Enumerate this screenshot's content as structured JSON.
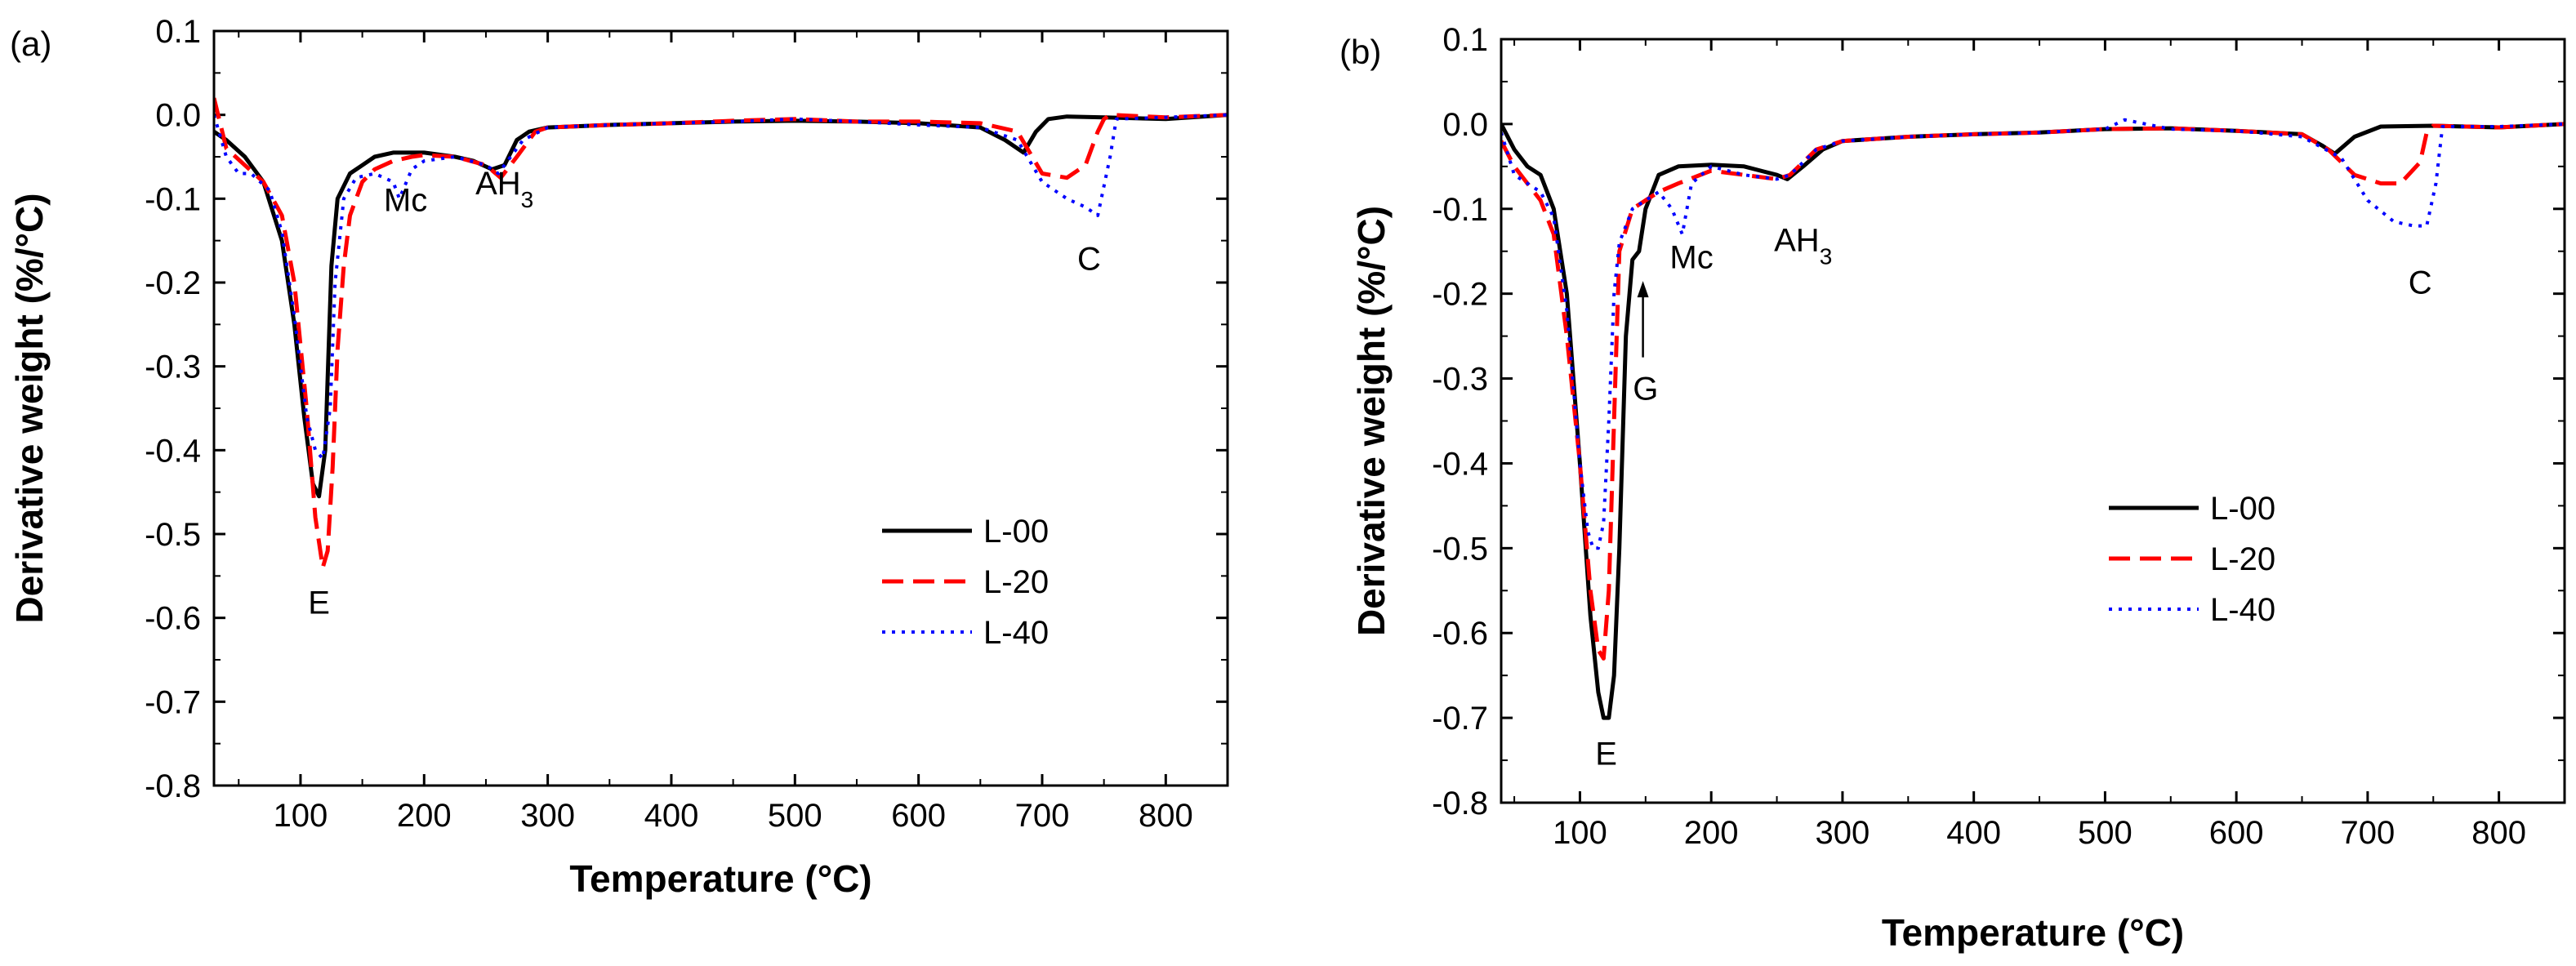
{
  "chart_data": [
    {
      "panel_label": "(a)",
      "type": "line",
      "xlabel": "Temperature (°C)",
      "ylabel": "Derivative weight (%/°C)",
      "xlim": [
        30,
        850
      ],
      "ylim": [
        -0.8,
        0.1
      ],
      "xticks": [
        100,
        200,
        300,
        400,
        500,
        600,
        700,
        800
      ],
      "yticks": [
        -0.8,
        -0.7,
        -0.6,
        -0.5,
        -0.4,
        -0.3,
        -0.2,
        -0.1,
        0.0,
        0.1
      ],
      "legend_position": "lower-right",
      "annotations": [
        {
          "text": "E",
          "x": 115,
          "y": -0.595
        },
        {
          "text": "Mc",
          "x": 185,
          "y": -0.115
        },
        {
          "text": "AH",
          "sub": "3",
          "x": 265,
          "y": -0.095
        },
        {
          "text": "C",
          "x": 738,
          "y": -0.185
        }
      ],
      "series": [
        {
          "name": "L-00",
          "style": "solid",
          "color": "#000000",
          "x": [
            30,
            40,
            55,
            70,
            85,
            95,
            103,
            110,
            115,
            120,
            125,
            130,
            140,
            150,
            160,
            175,
            200,
            225,
            240,
            255,
            265,
            275,
            285,
            300,
            350,
            400,
            450,
            500,
            550,
            600,
            650,
            670,
            685,
            695,
            705,
            720,
            750,
            800,
            850
          ],
          "y": [
            -0.02,
            -0.03,
            -0.05,
            -0.08,
            -0.15,
            -0.25,
            -0.36,
            -0.44,
            -0.455,
            -0.4,
            -0.18,
            -0.1,
            -0.07,
            -0.06,
            -0.05,
            -0.045,
            -0.045,
            -0.05,
            -0.055,
            -0.065,
            -0.06,
            -0.03,
            -0.02,
            -0.015,
            -0.012,
            -0.01,
            -0.008,
            -0.007,
            -0.008,
            -0.01,
            -0.015,
            -0.03,
            -0.045,
            -0.02,
            -0.005,
            -0.002,
            -0.003,
            -0.005,
            0.0
          ]
        },
        {
          "name": "L-20",
          "style": "dashed",
          "color": "#ff0000",
          "x": [
            30,
            40,
            55,
            70,
            85,
            95,
            105,
            112,
            118,
            122,
            126,
            130,
            135,
            140,
            150,
            160,
            175,
            190,
            200,
            225,
            250,
            262,
            275,
            290,
            300,
            350,
            400,
            450,
            500,
            550,
            600,
            650,
            680,
            700,
            720,
            735,
            745,
            750,
            755,
            800,
            850
          ],
          "y": [
            0.02,
            -0.04,
            -0.06,
            -0.08,
            -0.12,
            -0.2,
            -0.35,
            -0.48,
            -0.54,
            -0.52,
            -0.42,
            -0.28,
            -0.18,
            -0.12,
            -0.08,
            -0.065,
            -0.055,
            -0.05,
            -0.048,
            -0.05,
            -0.06,
            -0.075,
            -0.05,
            -0.02,
            -0.015,
            -0.012,
            -0.01,
            -0.007,
            -0.005,
            -0.008,
            -0.008,
            -0.01,
            -0.02,
            -0.07,
            -0.075,
            -0.06,
            -0.02,
            -0.005,
            0.0,
            -0.003,
            0.0
          ]
        },
        {
          "name": "L-40",
          "style": "dotted",
          "color": "#0000ff",
          "x": [
            30,
            40,
            50,
            60,
            75,
            85,
            95,
            105,
            112,
            118,
            124,
            128,
            135,
            145,
            160,
            175,
            180,
            190,
            200,
            225,
            250,
            260,
            280,
            300,
            350,
            400,
            450,
            500,
            550,
            600,
            650,
            680,
            700,
            720,
            735,
            745,
            755,
            760,
            800,
            850
          ],
          "y": [
            0.0,
            -0.05,
            -0.07,
            -0.07,
            -0.09,
            -0.14,
            -0.24,
            -0.36,
            -0.4,
            -0.41,
            -0.35,
            -0.2,
            -0.1,
            -0.075,
            -0.07,
            -0.08,
            -0.1,
            -0.065,
            -0.055,
            -0.05,
            -0.06,
            -0.07,
            -0.03,
            -0.015,
            -0.012,
            -0.01,
            -0.008,
            -0.005,
            -0.008,
            -0.012,
            -0.015,
            -0.03,
            -0.08,
            -0.1,
            -0.11,
            -0.12,
            -0.05,
            -0.005,
            -0.003,
            0.0
          ]
        }
      ]
    },
    {
      "panel_label": "(b)",
      "type": "line",
      "xlabel": "Temperature (°C)",
      "ylabel": "Derivative weight (%/°C)",
      "xlim": [
        40,
        850
      ],
      "ylim": [
        -0.8,
        0.1
      ],
      "xticks": [
        100,
        200,
        300,
        400,
        500,
        600,
        700,
        800
      ],
      "yticks": [
        -0.8,
        -0.7,
        -0.6,
        -0.5,
        -0.4,
        -0.3,
        -0.2,
        -0.1,
        0.0,
        0.1
      ],
      "legend_position": "lower-right",
      "annotations": [
        {
          "text": "Mc",
          "x": 185,
          "y": -0.17
        },
        {
          "text": "AH",
          "sub": "3",
          "x": 270,
          "y": -0.15
        },
        {
          "text": "G",
          "x": 150,
          "y": -0.325
        },
        {
          "text": "E",
          "x": 120,
          "y": -0.755
        },
        {
          "text": "C",
          "x": 740,
          "y": -0.2
        }
      ],
      "arrow": {
        "x": 148,
        "y_from": -0.275,
        "y_to": -0.185
      },
      "series": [
        {
          "name": "L-00",
          "style": "solid",
          "color": "#000000",
          "x": [
            40,
            50,
            60,
            70,
            80,
            90,
            100,
            108,
            114,
            118,
            122,
            126,
            130,
            135,
            140,
            145,
            150,
            160,
            175,
            200,
            225,
            250,
            258,
            270,
            285,
            300,
            350,
            400,
            450,
            500,
            550,
            600,
            650,
            665,
            675,
            690,
            710,
            750,
            800,
            850
          ],
          "y": [
            0.0,
            -0.03,
            -0.05,
            -0.06,
            -0.1,
            -0.2,
            -0.4,
            -0.58,
            -0.67,
            -0.7,
            -0.7,
            -0.65,
            -0.5,
            -0.25,
            -0.16,
            -0.15,
            -0.1,
            -0.06,
            -0.05,
            -0.048,
            -0.05,
            -0.06,
            -0.065,
            -0.05,
            -0.03,
            -0.02,
            -0.015,
            -0.012,
            -0.01,
            -0.006,
            -0.005,
            -0.008,
            -0.012,
            -0.025,
            -0.035,
            -0.015,
            -0.003,
            -0.002,
            -0.004,
            0.0
          ]
        },
        {
          "name": "L-20",
          "style": "dashed",
          "color": "#ff0000",
          "x": [
            40,
            50,
            60,
            70,
            80,
            90,
            100,
            108,
            114,
            118,
            122,
            126,
            130,
            140,
            150,
            160,
            175,
            200,
            225,
            250,
            260,
            280,
            300,
            350,
            400,
            450,
            500,
            550,
            600,
            650,
            670,
            690,
            710,
            725,
            740,
            745,
            750,
            800,
            850
          ],
          "y": [
            -0.02,
            -0.05,
            -0.07,
            -0.09,
            -0.13,
            -0.25,
            -0.4,
            -0.55,
            -0.62,
            -0.63,
            -0.55,
            -0.35,
            -0.15,
            -0.1,
            -0.09,
            -0.08,
            -0.07,
            -0.055,
            -0.06,
            -0.065,
            -0.06,
            -0.03,
            -0.02,
            -0.015,
            -0.012,
            -0.01,
            -0.006,
            -0.005,
            -0.008,
            -0.012,
            -0.03,
            -0.06,
            -0.07,
            -0.07,
            -0.045,
            -0.01,
            -0.002,
            -0.004,
            0.0
          ]
        },
        {
          "name": "L-40",
          "style": "dotted",
          "color": "#0000ff",
          "x": [
            40,
            50,
            60,
            70,
            80,
            90,
            100,
            106,
            110,
            114,
            118,
            122,
            126,
            130,
            140,
            150,
            160,
            170,
            178,
            185,
            200,
            225,
            250,
            260,
            280,
            300,
            350,
            400,
            450,
            500,
            515,
            550,
            600,
            650,
            680,
            700,
            720,
            735,
            745,
            752,
            757,
            800,
            850
          ],
          "y": [
            -0.01,
            -0.06,
            -0.07,
            -0.08,
            -0.11,
            -0.22,
            -0.4,
            -0.48,
            -0.5,
            -0.5,
            -0.47,
            -0.35,
            -0.2,
            -0.14,
            -0.1,
            -0.09,
            -0.08,
            -0.1,
            -0.13,
            -0.07,
            -0.05,
            -0.06,
            -0.065,
            -0.06,
            -0.03,
            -0.02,
            -0.015,
            -0.012,
            -0.01,
            -0.006,
            0.005,
            -0.006,
            -0.008,
            -0.015,
            -0.04,
            -0.09,
            -0.115,
            -0.12,
            -0.12,
            -0.07,
            -0.003,
            -0.003,
            0.0
          ]
        }
      ]
    }
  ]
}
